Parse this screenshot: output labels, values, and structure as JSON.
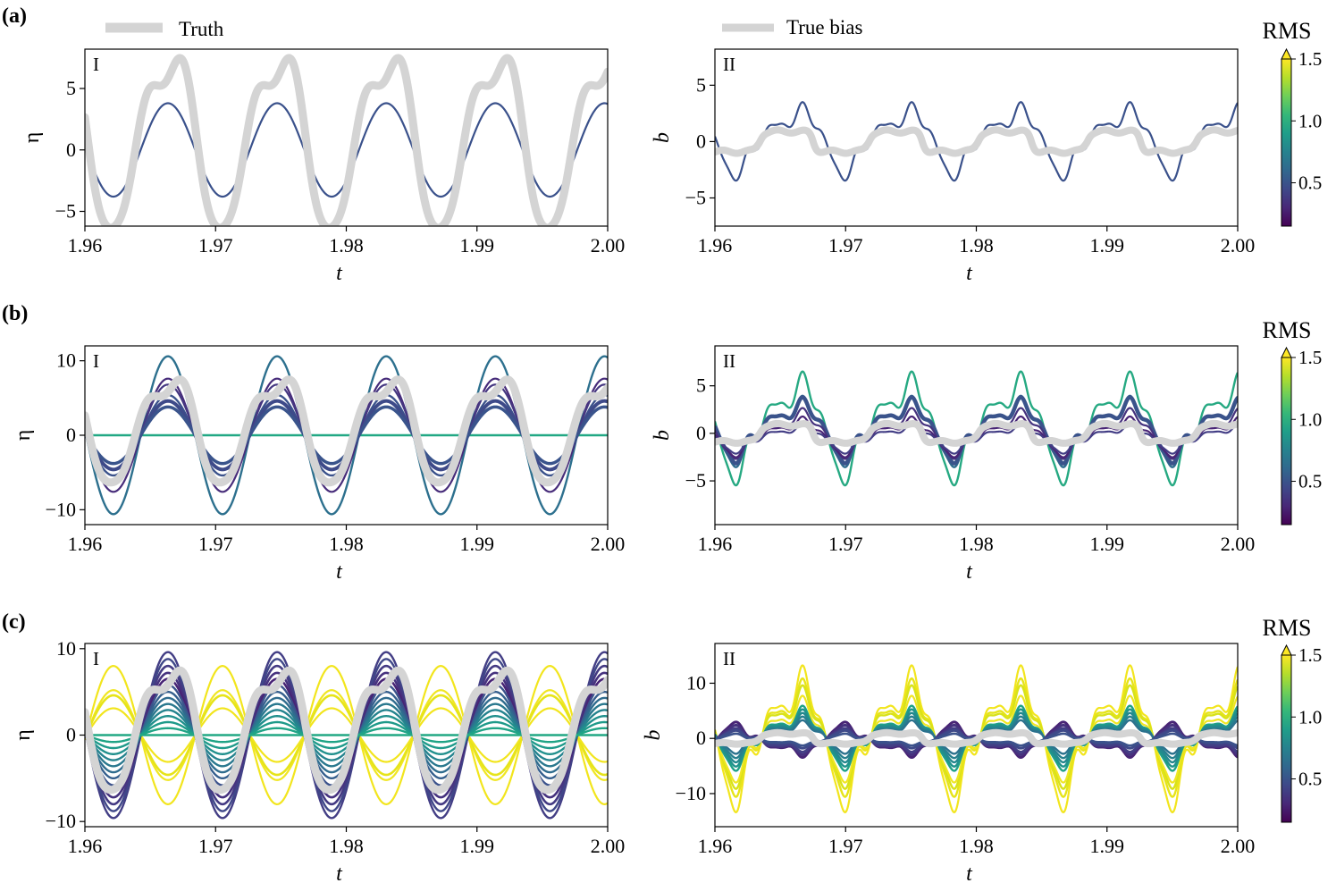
{
  "figure": {
    "rows": [
      {
        "tag": "(a)",
        "left_legend": "Truth",
        "right_legend": "True bias",
        "cbar_title": "RMS"
      },
      {
        "tag": "(b)",
        "cbar_title": "RMS"
      },
      {
        "tag": "(c)",
        "cbar_title": "RMS"
      }
    ],
    "cbar_ticks": [
      "0.5",
      "1.0",
      "1.5"
    ],
    "colors": {
      "truth": "#d4d4d4",
      "viridis": [
        "#440154",
        "#482878",
        "#3e4989",
        "#31688e",
        "#26828e",
        "#1f9e89",
        "#35b779",
        "#6ece58",
        "#b5de2b",
        "#fde725"
      ]
    }
  },
  "chart_data": [
    {
      "id": "a-I",
      "type": "line",
      "roman": "I",
      "xlabel": "t",
      "ylabel": "η",
      "xlim": [
        1.96,
        2.0
      ],
      "ylim": [
        -6.2,
        8.2
      ],
      "xticks": [
        "1.96",
        "1.97",
        "1.98",
        "1.99",
        "2.00"
      ],
      "yticks": [
        {
          "v": -5,
          "label": "−5"
        },
        {
          "v": 0,
          "label": "0"
        },
        {
          "v": 5,
          "label": "5"
        }
      ],
      "truth": {
        "name": "Truth",
        "shape": "eta",
        "amp": 6.8,
        "offset": 1.0
      },
      "ensemble": [
        {
          "amp": 3.8,
          "offset": 0.0,
          "shape": "sine",
          "color": "#3a518b",
          "w": 2.2
        }
      ]
    },
    {
      "id": "a-II",
      "type": "line",
      "roman": "II",
      "xlabel": "t",
      "ylabel": "b",
      "xlim": [
        1.96,
        2.0
      ],
      "ylim": [
        -7.5,
        8.2
      ],
      "xticks": [
        "1.96",
        "1.97",
        "1.98",
        "1.99",
        "2.00"
      ],
      "yticks": [
        {
          "v": -5,
          "label": "−5"
        },
        {
          "v": 0,
          "label": "0"
        },
        {
          "v": 5,
          "label": "5"
        }
      ],
      "truth": {
        "name": "True bias",
        "shape": "bias",
        "amp": 1.0,
        "offset": 0.0
      },
      "ensemble": [
        {
          "amp": 3.9,
          "offset": 0.3,
          "shape": "bias-est",
          "color": "#3a518b",
          "w": 2.2
        }
      ]
    },
    {
      "id": "b-I",
      "type": "line",
      "roman": "I",
      "xlabel": "t",
      "ylabel": "η",
      "xlim": [
        1.96,
        2.0
      ],
      "ylim": [
        -12.0,
        12.0
      ],
      "xticks": [
        "1.96",
        "1.97",
        "1.98",
        "1.99",
        "2.00"
      ],
      "yticks": [
        {
          "v": -10,
          "label": "−10"
        },
        {
          "v": 0,
          "label": "0"
        },
        {
          "v": 10,
          "label": "10"
        }
      ],
      "truth": {
        "name": "Truth",
        "shape": "eta",
        "amp": 6.8,
        "offset": 1.0
      },
      "ensemble": [
        {
          "amp": 0.0,
          "offset": 0.0,
          "shape": "sine",
          "color": "#22a884",
          "w": 2.4
        },
        {
          "amp": 10.6,
          "offset": 0.0,
          "shape": "sine",
          "color": "#2d708e",
          "w": 2.4
        },
        {
          "amp": 7.6,
          "offset": 0.0,
          "shape": "sine",
          "color": "#472c7a",
          "w": 2.2
        },
        {
          "amp": 6.6,
          "offset": 0.2,
          "shape": "sine",
          "color": "#453781",
          "w": 2.2
        },
        {
          "amp": 5.4,
          "offset": 0.0,
          "shape": "sine",
          "color": "#3b528b",
          "w": 2.4
        },
        {
          "amp": 4.6,
          "offset": 0.0,
          "shape": "sine",
          "color": "#3e4a89",
          "w": 4.0
        },
        {
          "amp": 3.8,
          "offset": 0.0,
          "shape": "sine",
          "color": "#3a548c",
          "w": 3.5
        }
      ]
    },
    {
      "id": "b-II",
      "type": "line",
      "roman": "II",
      "xlabel": "t",
      "ylabel": "b",
      "xlim": [
        1.96,
        2.0
      ],
      "ylim": [
        -9.6,
        9.2
      ],
      "xticks": [
        "1.96",
        "1.97",
        "1.98",
        "1.99",
        "2.00"
      ],
      "yticks": [
        {
          "v": -5,
          "label": "−5"
        },
        {
          "v": 0,
          "label": "0"
        },
        {
          "v": 5,
          "label": "5"
        }
      ],
      "truth": {
        "name": "True bias",
        "shape": "bias",
        "amp": 1.0,
        "offset": 0.0
      },
      "ensemble": [
        {
          "amp": 6.7,
          "offset": 1.0,
          "shape": "bias-est",
          "color": "#26a982",
          "w": 2.4
        },
        {
          "amp": 4.2,
          "offset": 0.5,
          "shape": "bias-est",
          "color": "#2f6c8e",
          "w": 2.4
        },
        {
          "amp": 3.9,
          "offset": 0.6,
          "shape": "bias-est",
          "color": "#3a538b",
          "w": 4.5
        },
        {
          "amp": 3.0,
          "offset": 0.2,
          "shape": "bias-est",
          "color": "#46337e",
          "w": 2.2
        },
        {
          "amp": 2.4,
          "offset": -0.2,
          "shape": "bias-est",
          "color": "#482475",
          "w": 2.2
        },
        {
          "amp": 1.8,
          "offset": -0.4,
          "shape": "bias-est",
          "color": "#433e85",
          "w": 2.2
        }
      ]
    },
    {
      "id": "c-I",
      "type": "line",
      "roman": "I",
      "xlabel": "t",
      "ylabel": "η",
      "xlim": [
        1.96,
        2.0
      ],
      "ylim": [
        -10.6,
        10.6
      ],
      "xticks": [
        "1.96",
        "1.97",
        "1.98",
        "1.99",
        "2.00"
      ],
      "yticks": [
        {
          "v": -10,
          "label": "−10"
        },
        {
          "v": 0,
          "label": "0"
        },
        {
          "v": 10,
          "label": "10"
        }
      ],
      "truth": {
        "name": "Truth",
        "shape": "eta",
        "amp": 6.8,
        "offset": 1.0
      },
      "ensemble": [
        {
          "amp": -8.0,
          "offset": 0.0,
          "shape": "sine",
          "color": "#f2e51d",
          "w": 2.2
        },
        {
          "amp": -5.2,
          "offset": 0.0,
          "shape": "sine",
          "color": "#f0e622",
          "w": 2.2
        },
        {
          "amp": -4.6,
          "offset": 0.0,
          "shape": "sine",
          "color": "#e6e419",
          "w": 2.6
        },
        {
          "amp": -3.1,
          "offset": 0.0,
          "shape": "sine",
          "color": "#f2e51d",
          "w": 2.2
        },
        {
          "amp": 9.6,
          "offset": 0.0,
          "shape": "sine",
          "color": "#433e85",
          "w": 2.4
        },
        {
          "amp": 8.8,
          "offset": 0.0,
          "shape": "sine",
          "color": "#3f4788",
          "w": 2.4
        },
        {
          "amp": 8.0,
          "offset": 0.0,
          "shape": "sine",
          "color": "#443a83",
          "w": 2.6
        },
        {
          "amp": 7.2,
          "offset": 0.0,
          "shape": "sine",
          "color": "#46327e",
          "w": 2.6
        },
        {
          "amp": 6.5,
          "offset": 0.0,
          "shape": "sine",
          "color": "#482475",
          "w": 2.6
        },
        {
          "amp": 5.8,
          "offset": 0.0,
          "shape": "sine",
          "color": "#3b528b",
          "w": 2.4
        },
        {
          "amp": 5.0,
          "offset": 0.0,
          "shape": "sine",
          "color": "#355f8d",
          "w": 2.4
        },
        {
          "amp": 4.3,
          "offset": 0.0,
          "shape": "sine",
          "color": "#2f6c8e",
          "w": 2.4
        },
        {
          "amp": 3.6,
          "offset": 0.0,
          "shape": "sine",
          "color": "#2a788e",
          "w": 2.4
        },
        {
          "amp": 2.9,
          "offset": 0.0,
          "shape": "sine",
          "color": "#25838e",
          "w": 2.4
        },
        {
          "amp": 2.2,
          "offset": 0.0,
          "shape": "sine",
          "color": "#21908d",
          "w": 2.4
        },
        {
          "amp": 1.5,
          "offset": 0.0,
          "shape": "sine",
          "color": "#1f9a8a",
          "w": 2.4
        },
        {
          "amp": 0.8,
          "offset": 0.0,
          "shape": "sine",
          "color": "#20a486",
          "w": 2.4
        },
        {
          "amp": 0.0,
          "offset": 0.0,
          "shape": "sine",
          "color": "#22a884",
          "w": 2.4
        }
      ]
    },
    {
      "id": "c-II",
      "type": "line",
      "roman": "II",
      "xlabel": "t",
      "ylabel": "b",
      "xlim": [
        1.96,
        2.0
      ],
      "ylim": [
        -16.0,
        17.2
      ],
      "xticks": [
        "1.96",
        "1.97",
        "1.98",
        "1.99",
        "2.00"
      ],
      "yticks": [
        {
          "v": -10,
          "label": "−10"
        },
        {
          "v": 0,
          "label": "0"
        },
        {
          "v": 10,
          "label": "10"
        }
      ],
      "truth": {
        "name": "True bias",
        "shape": "bias",
        "amp": 1.0,
        "offset": 0.0
      },
      "ensemble": [
        {
          "amp": 14.9,
          "offset": 1.0,
          "shape": "bias-est",
          "color": "#f2e51d",
          "w": 2.2
        },
        {
          "amp": 12.0,
          "offset": 1.0,
          "shape": "bias-est",
          "color": "#e6e419",
          "w": 2.4
        },
        {
          "amp": 10.5,
          "offset": 1.0,
          "shape": "bias-est",
          "color": "#d8e219",
          "w": 2.4
        },
        {
          "amp": 8.8,
          "offset": 0.5,
          "shape": "bias-est",
          "color": "#f0e622",
          "w": 2.2
        },
        {
          "amp": 6.6,
          "offset": 0.5,
          "shape": "bias-est",
          "color": "#1fa187",
          "w": 2.4
        },
        {
          "amp": 5.8,
          "offset": 0.5,
          "shape": "bias-est",
          "color": "#20928c",
          "w": 2.4
        },
        {
          "amp": 5.0,
          "offset": 0.5,
          "shape": "bias-est",
          "color": "#23888e",
          "w": 2.4
        },
        {
          "amp": 4.2,
          "offset": 0.5,
          "shape": "bias-est",
          "color": "#277f8e",
          "w": 2.4
        },
        {
          "amp": 3.4,
          "offset": 0.5,
          "shape": "bias-est",
          "color": "#2c728e",
          "w": 2.4
        },
        {
          "amp": -3.6,
          "offset": -0.5,
          "shape": "bias-est",
          "color": "#482475",
          "w": 3.0
        },
        {
          "amp": -3.0,
          "offset": -0.5,
          "shape": "bias-est",
          "color": "#46327e",
          "w": 3.0
        },
        {
          "amp": -2.4,
          "offset": -0.5,
          "shape": "bias-est",
          "color": "#433e85",
          "w": 3.0
        },
        {
          "amp": -1.8,
          "offset": -0.3,
          "shape": "bias-est",
          "color": "#3e4a89",
          "w": 3.0
        },
        {
          "amp": -1.2,
          "offset": -0.3,
          "shape": "bias-est",
          "color": "#3b528b",
          "w": 2.6
        }
      ]
    }
  ]
}
